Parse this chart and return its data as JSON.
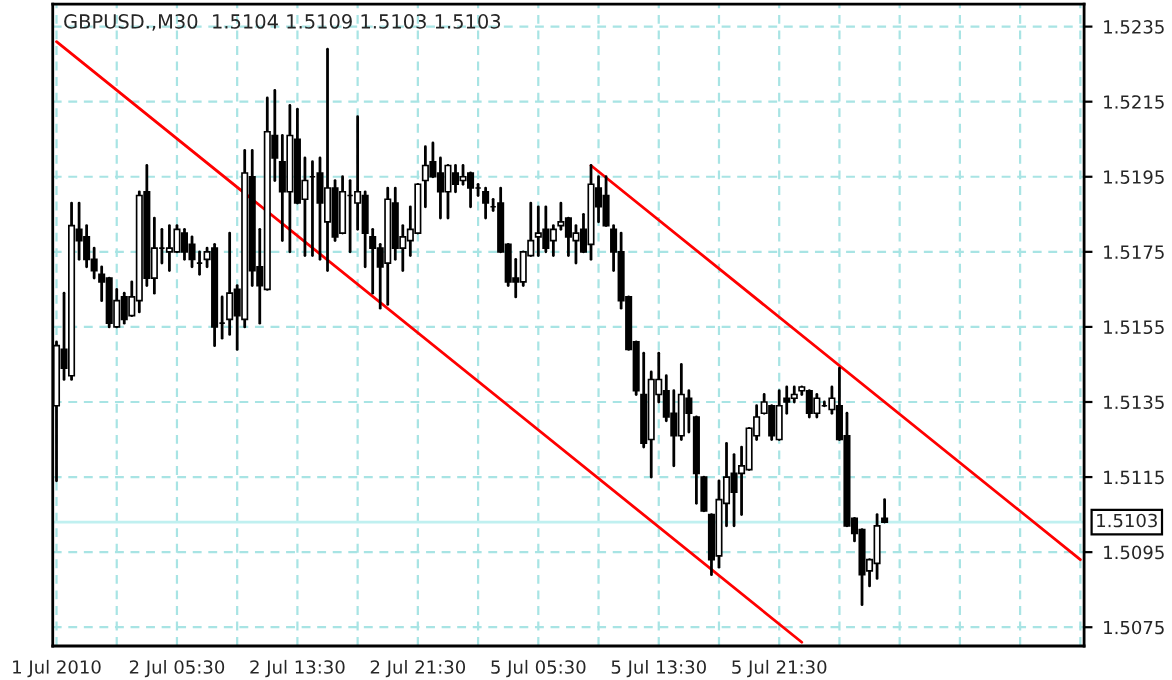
{
  "chart_data": {
    "type": "candlestick",
    "title": "GBPUSD.,M30  1.5104 1.5109 1.5103 1.5103",
    "categories": [
      "1 Jul 2010",
      null,
      null,
      null,
      null,
      null,
      null,
      null,
      null,
      null,
      null,
      null,
      null,
      null,
      null,
      null,
      "2 Jul 05:30",
      null,
      null,
      null,
      null,
      null,
      null,
      null,
      null,
      null,
      null,
      null,
      null,
      null,
      null,
      null,
      "2 Jul 13:30",
      null,
      null,
      null,
      null,
      null,
      null,
      null,
      null,
      null,
      null,
      null,
      null,
      null,
      null,
      null,
      "2 Jul 21:30",
      null,
      null,
      null,
      null,
      null,
      null,
      null,
      null,
      null,
      null,
      null,
      null,
      null,
      null,
      null,
      "5 Jul 05:30",
      null,
      null,
      null,
      null,
      null,
      null,
      null,
      null,
      null,
      null,
      null,
      null,
      null,
      null,
      null,
      "5 Jul 13:30",
      null,
      null,
      null,
      null,
      null,
      null,
      null,
      null,
      null,
      null,
      null,
      null,
      null,
      null,
      null,
      "5 Jul 21:30",
      null,
      null,
      null,
      null,
      null,
      null,
      null,
      null,
      null,
      null,
      null,
      null,
      null,
      null,
      null,
      null,
      null,
      null,
      null,
      null,
      null,
      null,
      null,
      null,
      null,
      null,
      null,
      null,
      null,
      null,
      null,
      null,
      null,
      null,
      null,
      null,
      null,
      null,
      null,
      null
    ],
    "ohlc": [
      [
        1.5134,
        1.5151,
        1.5114,
        1.515
      ],
      [
        1.5149,
        1.5164,
        1.5141,
        1.5144
      ],
      [
        1.5142,
        1.5188,
        1.5141,
        1.5182
      ],
      [
        1.5181,
        1.5188,
        1.5173,
        1.5178
      ],
      [
        1.5179,
        1.5182,
        1.5171,
        1.5173
      ],
      [
        1.5173,
        1.5176,
        1.5168,
        1.517
      ],
      [
        1.5169,
        1.5171,
        1.5162,
        1.5167
      ],
      [
        1.5168,
        1.5168,
        1.5155,
        1.5156
      ],
      [
        1.5155,
        1.5165,
        1.5155,
        1.5162
      ],
      [
        1.5163,
        1.5164,
        1.5156,
        1.5157
      ],
      [
        1.5158,
        1.5167,
        1.5158,
        1.5163
      ],
      [
        1.5162,
        1.5191,
        1.5159,
        1.519
      ],
      [
        1.5191,
        1.5198,
        1.5166,
        1.5168
      ],
      [
        1.5168,
        1.5184,
        1.5164,
        1.5176
      ],
      [
        1.5176,
        1.5181,
        1.5172,
        1.5176
      ],
      [
        1.5175,
        1.5182,
        1.517,
        1.5176
      ],
      [
        1.5175,
        1.5182,
        1.5175,
        1.5181
      ],
      [
        1.518,
        1.5181,
        1.5173,
        1.5175
      ],
      [
        1.5177,
        1.5179,
        1.5171,
        1.5173
      ],
      [
        1.5172,
        1.5175,
        1.5169,
        1.5172
      ],
      [
        1.5173,
        1.5176,
        1.5171,
        1.5175
      ],
      [
        1.5176,
        1.5177,
        1.515,
        1.5155
      ],
      [
        1.5156,
        1.5163,
        1.5152,
        1.5156
      ],
      [
        1.5157,
        1.518,
        1.5153,
        1.5164
      ],
      [
        1.5165,
        1.5166,
        1.5149,
        1.5158
      ],
      [
        1.5157,
        1.5202,
        1.5155,
        1.5196
      ],
      [
        1.5195,
        1.5202,
        1.5166,
        1.517
      ],
      [
        1.5171,
        1.5181,
        1.5156,
        1.5166
      ],
      [
        1.5165,
        1.5216,
        1.5165,
        1.5207
      ],
      [
        1.5206,
        1.5218,
        1.5194,
        1.52
      ],
      [
        1.5199,
        1.5206,
        1.5178,
        1.5191
      ],
      [
        1.5191,
        1.5214,
        1.5175,
        1.5206
      ],
      [
        1.5205,
        1.5213,
        1.5188,
        1.5188
      ],
      [
        1.5189,
        1.52,
        1.5174,
        1.5194
      ],
      [
        1.5195,
        1.5199,
        1.5174,
        1.5195
      ],
      [
        1.5196,
        1.52,
        1.5173,
        1.5188
      ],
      [
        1.5183,
        1.5229,
        1.517,
        1.5192
      ],
      [
        1.5192,
        1.5194,
        1.5178,
        1.5179
      ],
      [
        1.518,
        1.5195,
        1.518,
        1.5191
      ],
      [
        1.519,
        1.5194,
        1.5175,
        1.519
      ],
      [
        1.5188,
        1.5211,
        1.5181,
        1.5191
      ],
      [
        1.519,
        1.5191,
        1.5171,
        1.518
      ],
      [
        1.5179,
        1.5181,
        1.5164,
        1.5176
      ],
      [
        1.5176,
        1.5177,
        1.516,
        1.5171
      ],
      [
        1.5172,
        1.5192,
        1.5161,
        1.5189
      ],
      [
        1.5188,
        1.5192,
        1.5173,
        1.5176
      ],
      [
        1.5176,
        1.5182,
        1.517,
        1.5179
      ],
      [
        1.5178,
        1.5187,
        1.5174,
        1.5181
      ],
      [
        1.518,
        1.5193,
        1.518,
        1.5193
      ],
      [
        1.5194,
        1.5203,
        1.5187,
        1.5198
      ],
      [
        1.5199,
        1.5204,
        1.5195,
        1.5195
      ],
      [
        1.5196,
        1.52,
        1.5184,
        1.5191
      ],
      [
        1.5191,
        1.5198,
        1.5184,
        1.5198
      ],
      [
        1.5196,
        1.5198,
        1.5191,
        1.5193
      ],
      [
        1.5194,
        1.5198,
        1.5193,
        1.5195
      ],
      [
        1.5196,
        1.5196,
        1.5187,
        1.5192
      ],
      [
        1.5192,
        1.5193,
        1.519,
        1.5192
      ],
      [
        1.5191,
        1.5192,
        1.5184,
        1.5188
      ],
      [
        1.5187,
        1.5189,
        1.5186,
        1.5187
      ],
      [
        1.5188,
        1.5192,
        1.5175,
        1.5175
      ],
      [
        1.5177,
        1.5177,
        1.5166,
        1.5167
      ],
      [
        1.5168,
        1.5173,
        1.5163,
        1.5167
      ],
      [
        1.5167,
        1.5175,
        1.5166,
        1.5175
      ],
      [
        1.5174,
        1.5188,
        1.5174,
        1.5178
      ],
      [
        1.5179,
        1.5187,
        1.5174,
        1.518
      ],
      [
        1.5181,
        1.5187,
        1.5175,
        1.5176
      ],
      [
        1.5178,
        1.5182,
        1.5174,
        1.5181
      ],
      [
        1.5182,
        1.5188,
        1.5181,
        1.5183
      ],
      [
        1.5184,
        1.5184,
        1.5174,
        1.5179
      ],
      [
        1.5178,
        1.5182,
        1.5172,
        1.518
      ],
      [
        1.5181,
        1.5185,
        1.5175,
        1.5175
      ],
      [
        1.5177,
        1.5198,
        1.5173,
        1.5193
      ],
      [
        1.5192,
        1.5195,
        1.5183,
        1.5187
      ],
      [
        1.519,
        1.5195,
        1.5182,
        1.5182
      ],
      [
        1.5181,
        1.5182,
        1.517,
        1.5175
      ],
      [
        1.5175,
        1.518,
        1.516,
        1.5162
      ],
      [
        1.5163,
        1.5163,
        1.5149,
        1.5149
      ],
      [
        1.5151,
        1.5151,
        1.5137,
        1.5138
      ],
      [
        1.5137,
        1.5148,
        1.5123,
        1.5124
      ],
      [
        1.5125,
        1.5143,
        1.5115,
        1.5141
      ],
      [
        1.5137,
        1.5148,
        1.5135,
        1.5141
      ],
      [
        1.5138,
        1.5142,
        1.513,
        1.5131
      ],
      [
        1.5132,
        1.5138,
        1.5118,
        1.5126
      ],
      [
        1.5126,
        1.5145,
        1.5125,
        1.5137
      ],
      [
        1.5136,
        1.5138,
        1.5127,
        1.5132
      ],
      [
        1.5131,
        1.5131,
        1.5108,
        1.5116
      ],
      [
        1.5115,
        1.5115,
        1.5106,
        1.5106
      ],
      [
        1.5105,
        1.5105,
        1.5089,
        1.5093
      ],
      [
        1.5094,
        1.5114,
        1.5091,
        1.5109
      ],
      [
        1.5108,
        1.5124,
        1.5102,
        1.5115
      ],
      [
        1.5116,
        1.5121,
        1.5102,
        1.5111
      ],
      [
        1.5116,
        1.5123,
        1.5105,
        1.5118
      ],
      [
        1.5117,
        1.5128,
        1.5117,
        1.5128
      ],
      [
        1.5126,
        1.5134,
        1.5125,
        1.5131
      ],
      [
        1.5132,
        1.5137,
        1.5132,
        1.5135
      ],
      [
        1.5134,
        1.5134,
        1.5125,
        1.5126
      ],
      [
        1.5125,
        1.5138,
        1.5125,
        1.5134
      ],
      [
        1.5136,
        1.5139,
        1.5132,
        1.5135
      ],
      [
        1.5136,
        1.5139,
        1.5135,
        1.5137
      ],
      [
        1.5138,
        1.5139,
        1.5137,
        1.5139
      ],
      [
        1.5138,
        1.5138,
        1.5131,
        1.5132
      ],
      [
        1.5132,
        1.5137,
        1.5131,
        1.5136
      ],
      [
        1.5134,
        1.5135,
        1.5134,
        1.5134
      ],
      [
        1.5133,
        1.5139,
        1.5132,
        1.5136
      ],
      [
        1.5134,
        1.5144,
        1.5125,
        1.5125
      ],
      [
        1.5126,
        1.5132,
        1.5102,
        1.5102
      ],
      [
        1.5104,
        1.5104,
        1.5098,
        1.51
      ],
      [
        1.5101,
        1.5101,
        1.5081,
        1.5089
      ],
      [
        1.509,
        1.5093,
        1.5086,
        1.5093
      ],
      [
        1.5092,
        1.5105,
        1.5088,
        1.5102
      ],
      [
        1.5104,
        1.5109,
        1.5103,
        1.5103
      ],
      null,
      null,
      null,
      null,
      null,
      null,
      null,
      null,
      null,
      null,
      null,
      null,
      null,
      null,
      null,
      null,
      null,
      null,
      null,
      null,
      null,
      null,
      null,
      null,
      null,
      null
    ],
    "series": [
      {
        "type": "line",
        "color": "#ff0000",
        "values": [
          1.5231,
          null,
          null,
          null,
          null,
          null,
          null,
          null,
          null,
          null,
          null,
          null,
          null,
          null,
          null,
          null,
          null,
          null,
          null,
          null,
          null,
          null,
          null,
          null,
          null,
          null,
          null,
          null,
          null,
          null,
          null,
          null,
          null,
          null,
          null,
          null,
          null,
          null,
          null,
          null,
          null,
          null,
          null,
          null,
          null,
          null,
          null,
          null,
          null,
          null,
          null,
          null,
          null,
          null,
          null,
          null,
          null,
          null,
          null,
          null,
          null,
          null,
          null,
          null,
          null,
          null,
          null,
          null,
          null,
          null,
          null,
          null,
          null,
          null,
          null,
          null,
          null,
          null,
          null,
          null,
          null,
          null,
          null,
          null,
          null,
          null,
          null,
          null,
          null,
          null,
          null,
          null,
          null,
          null,
          null,
          null,
          null,
          null,
          null,
          1.5071,
          null,
          null,
          null,
          null,
          null,
          null,
          null,
          null,
          null,
          null,
          null,
          null,
          null,
          null,
          null,
          null,
          null,
          null,
          null,
          null,
          null,
          null,
          null,
          null,
          null,
          null,
          null,
          null,
          null,
          null,
          null,
          null,
          null,
          null,
          null,
          null,
          null
        ]
      },
      {
        "type": "line",
        "color": "#ff0000",
        "values": [
          null,
          null,
          null,
          null,
          null,
          null,
          null,
          null,
          null,
          null,
          null,
          null,
          null,
          null,
          null,
          null,
          null,
          null,
          null,
          null,
          null,
          null,
          null,
          null,
          null,
          null,
          null,
          null,
          null,
          null,
          null,
          null,
          null,
          null,
          null,
          null,
          null,
          null,
          null,
          null,
          null,
          null,
          null,
          null,
          null,
          null,
          null,
          null,
          null,
          null,
          null,
          null,
          null,
          null,
          null,
          null,
          null,
          null,
          null,
          null,
          null,
          null,
          null,
          null,
          null,
          null,
          null,
          null,
          null,
          null,
          null,
          1.5198,
          null,
          null,
          null,
          null,
          null,
          null,
          null,
          null,
          null,
          null,
          null,
          null,
          null,
          null,
          null,
          null,
          null,
          null,
          null,
          null,
          null,
          null,
          null,
          null,
          null,
          null,
          null,
          null,
          null,
          null,
          null,
          null,
          null,
          null,
          null,
          null,
          null,
          null,
          null,
          null,
          null,
          null,
          null,
          null,
          null,
          null,
          null,
          null,
          null,
          null,
          null,
          null,
          null,
          null,
          null,
          null,
          null,
          null,
          null,
          null,
          null,
          null,
          null,
          null,
          1.5093
        ]
      }
    ],
    "ref_lines": [
      {
        "axis": "y",
        "value": 1.5103,
        "label": "1.5103",
        "color": "#c0f0f0"
      }
    ],
    "ylim": [
      1.507,
      1.5241
    ],
    "yticks": [
      1.5075,
      1.5095,
      1.5115,
      1.5135,
      1.5155,
      1.5175,
      1.5195,
      1.5215,
      1.5235
    ],
    "grid": true
  }
}
